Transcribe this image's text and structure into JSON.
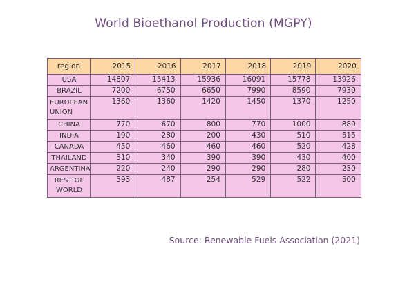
{
  "title": "World Bioethanol Production (MGPY)",
  "source": "Source: Renewable Fuels Association (2021)",
  "colors": {
    "header_fill": "#fbd7a6",
    "cell_fill": "#f4c6e8",
    "border": "#7a5a7a",
    "title_text": "#6e4d7e"
  },
  "chart_data": {
    "type": "table",
    "title": "World Bioethanol Production (MGPY)",
    "columns": [
      "region",
      "2015",
      "2016",
      "2017",
      "2018",
      "2019",
      "2020"
    ],
    "rows": [
      {
        "region": "USA",
        "values": [
          "14807",
          "15413",
          "15936",
          "16091",
          "15778",
          "13926"
        ]
      },
      {
        "region": "BRAZIL",
        "values": [
          "7200",
          "6750",
          "6650",
          "7990",
          "8590",
          "7930"
        ]
      },
      {
        "region": "EUROPEAN UNION",
        "values": [
          "1360",
          "1360",
          "1420",
          "1450",
          "1370",
          "1250"
        ]
      },
      {
        "region": "CHINA",
        "values": [
          "770",
          "670",
          "800",
          "770",
          "1000",
          "880"
        ]
      },
      {
        "region": "INDIA",
        "values": [
          "190",
          "280",
          "200",
          "430",
          "510",
          "515"
        ]
      },
      {
        "region": "CANADA",
        "values": [
          "450",
          "460",
          "460",
          "460",
          "520",
          "428"
        ]
      },
      {
        "region": "THAILAND",
        "values": [
          "310",
          "340",
          "390",
          "390",
          "430",
          "400"
        ]
      },
      {
        "region": "ARGENTINA",
        "values": [
          "220",
          "240",
          "290",
          "290",
          "280",
          "230"
        ]
      },
      {
        "region": "REST OF WORLD",
        "values": [
          "393",
          "487",
          "254",
          "529",
          "522",
          "500"
        ]
      }
    ]
  }
}
